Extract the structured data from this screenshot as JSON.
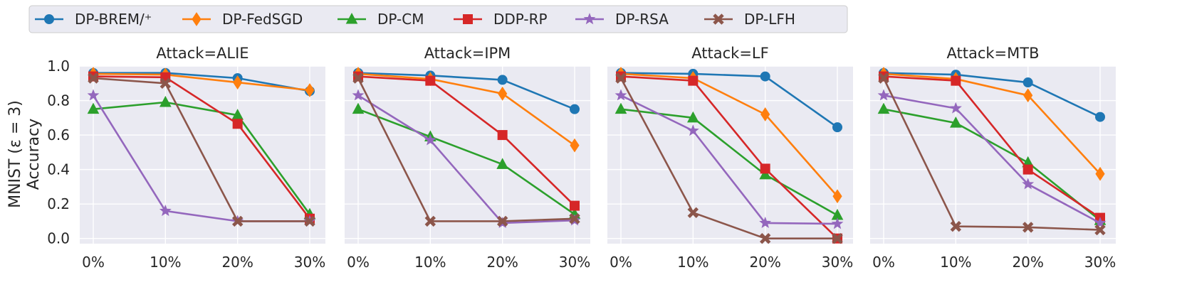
{
  "figure": {
    "ylabel_line1": "MNIST (ε = 3)",
    "ylabel_line2": "Accuracy"
  },
  "legend": [
    {
      "name": "DP-BREM/⁺",
      "color": "#1f77b4",
      "marker": "circle"
    },
    {
      "name": "DP-FedSGD",
      "color": "#ff7f0e",
      "marker": "diamond"
    },
    {
      "name": "DP-CM",
      "color": "#2ca02c",
      "marker": "triangle"
    },
    {
      "name": "DDP-RP",
      "color": "#d62728",
      "marker": "square"
    },
    {
      "name": "DP-RSA",
      "color": "#9467bd",
      "marker": "star"
    },
    {
      "name": "DP-LFH",
      "color": "#8c564b",
      "marker": "x"
    }
  ],
  "chart_data": [
    {
      "type": "line",
      "title": "Attack=ALIE",
      "categories": [
        "0%",
        "10%",
        "20%",
        "30%"
      ],
      "yticks": [
        "0.0",
        "0.2",
        "0.4",
        "0.6",
        "0.8",
        "1.0"
      ],
      "ylim": [
        -0.03,
        1.0
      ],
      "series": [
        {
          "name": "DP-BREM/⁺",
          "values": [
            0.96,
            0.96,
            0.93,
            0.855
          ]
        },
        {
          "name": "DP-FedSGD",
          "values": [
            0.955,
            0.95,
            0.905,
            0.86
          ]
        },
        {
          "name": "DP-CM",
          "values": [
            0.75,
            0.79,
            0.715,
            0.14
          ]
        },
        {
          "name": "DDP-RP",
          "values": [
            0.94,
            0.935,
            0.665,
            0.115
          ]
        },
        {
          "name": "DP-RSA",
          "values": [
            0.83,
            0.16,
            0.1,
            0.1
          ]
        },
        {
          "name": "DP-LFH",
          "values": [
            0.93,
            0.9,
            0.1,
            0.1
          ]
        }
      ]
    },
    {
      "type": "line",
      "title": "Attack=IPM",
      "categories": [
        "0%",
        "10%",
        "20%",
        "30%"
      ],
      "yticks": [
        "0.0",
        "0.2",
        "0.4",
        "0.6",
        "0.8",
        "1.0"
      ],
      "ylim": [
        -0.03,
        1.0
      ],
      "series": [
        {
          "name": "DP-BREM/⁺",
          "values": [
            0.96,
            0.945,
            0.92,
            0.75
          ]
        },
        {
          "name": "DP-FedSGD",
          "values": [
            0.955,
            0.925,
            0.84,
            0.54
          ]
        },
        {
          "name": "DP-CM",
          "values": [
            0.75,
            0.59,
            0.43,
            0.14
          ]
        },
        {
          "name": "DDP-RP",
          "values": [
            0.94,
            0.915,
            0.6,
            0.19
          ]
        },
        {
          "name": "DP-RSA",
          "values": [
            0.83,
            0.57,
            0.09,
            0.105
          ]
        },
        {
          "name": "DP-LFH",
          "values": [
            0.93,
            0.1,
            0.1,
            0.115
          ]
        }
      ]
    },
    {
      "type": "line",
      "title": "Attack=LF",
      "categories": [
        "0%",
        "10%",
        "20%",
        "30%"
      ],
      "yticks": [
        "0.0",
        "0.2",
        "0.4",
        "0.6",
        "0.8",
        "1.0"
      ],
      "ylim": [
        -0.03,
        1.0
      ],
      "series": [
        {
          "name": "DP-BREM/⁺",
          "values": [
            0.96,
            0.955,
            0.94,
            0.645
          ]
        },
        {
          "name": "DP-FedSGD",
          "values": [
            0.955,
            0.93,
            0.72,
            0.245
          ]
        },
        {
          "name": "DP-CM",
          "values": [
            0.75,
            0.7,
            0.37,
            0.135
          ]
        },
        {
          "name": "DDP-RP",
          "values": [
            0.94,
            0.915,
            0.405,
            0.0
          ]
        },
        {
          "name": "DP-RSA",
          "values": [
            0.83,
            0.625,
            0.09,
            0.085
          ]
        },
        {
          "name": "DP-LFH",
          "values": [
            0.93,
            0.15,
            0.0,
            0.0
          ]
        }
      ]
    },
    {
      "type": "line",
      "title": "Attack=MTB",
      "categories": [
        "0%",
        "10%",
        "20%",
        "30%"
      ],
      "yticks": [
        "0.0",
        "0.2",
        "0.4",
        "0.6",
        "0.8",
        "1.0"
      ],
      "ylim": [
        -0.03,
        1.0
      ],
      "series": [
        {
          "name": "DP-BREM/⁺",
          "values": [
            0.96,
            0.95,
            0.905,
            0.705
          ]
        },
        {
          "name": "DP-FedSGD",
          "values": [
            0.955,
            0.925,
            0.83,
            0.375
          ]
        },
        {
          "name": "DP-CM",
          "values": [
            0.75,
            0.67,
            0.44,
            0.105
          ]
        },
        {
          "name": "DDP-RP",
          "values": [
            0.94,
            0.915,
            0.4,
            0.12
          ]
        },
        {
          "name": "DP-RSA",
          "values": [
            0.83,
            0.755,
            0.315,
            0.09
          ]
        },
        {
          "name": "DP-LFH",
          "values": [
            0.93,
            0.07,
            0.065,
            0.05
          ]
        }
      ]
    }
  ]
}
